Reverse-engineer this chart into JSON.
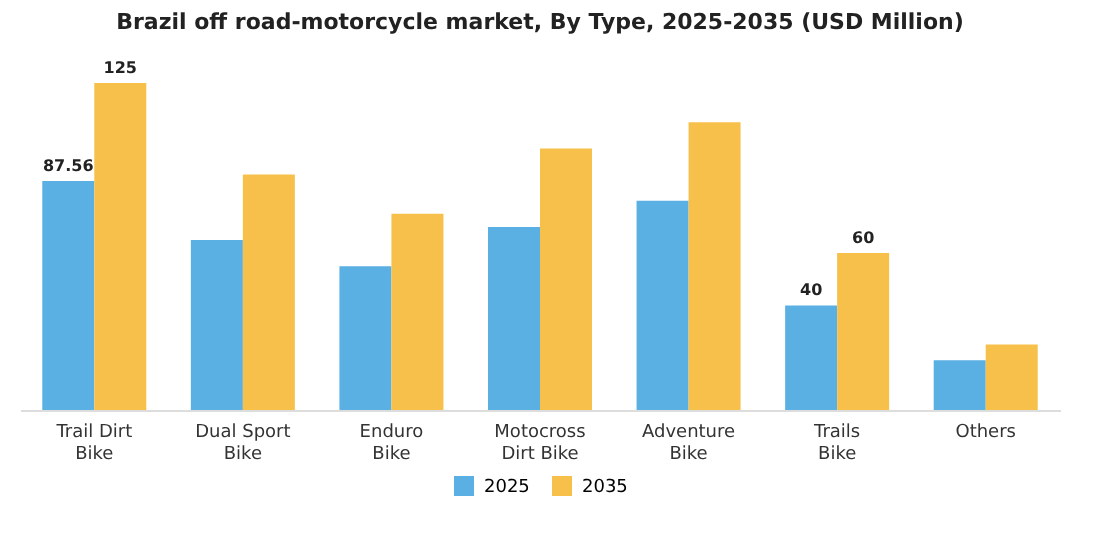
{
  "chart_data": {
    "type": "bar",
    "title": "Brazil off road-motorcycle market, By Type, 2025-2035 (USD Million)",
    "categories": [
      "Trail Dirt Bike",
      "Dual Sport Bike",
      "Enduro Bike",
      "Motocross Dirt Bike",
      "Adventure Bike",
      "Trails Bike",
      "Others"
    ],
    "series": [
      {
        "name": "2025",
        "color": "#5aafe3",
        "values": [
          87.56,
          65,
          55,
          70,
          80,
          40,
          19
        ],
        "value_labels": [
          "87.56",
          null,
          null,
          null,
          null,
          "40",
          null
        ]
      },
      {
        "name": "2035",
        "color": "#f7c04a",
        "values": [
          125,
          90,
          75,
          100,
          110,
          60,
          25
        ],
        "value_labels": [
          "125",
          null,
          null,
          null,
          null,
          "60",
          null
        ]
      }
    ],
    "legend": "bottom",
    "grid": false
  }
}
